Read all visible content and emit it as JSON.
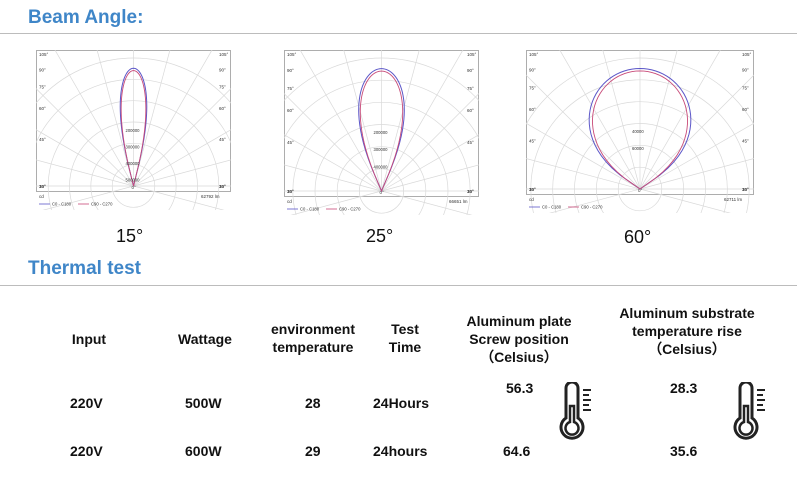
{
  "headings": {
    "beam_angle": "Beam Angle:",
    "thermal_test": "Thermal test"
  },
  "polar_charts": [
    {
      "angle_label": "15°",
      "lumens": "62792 lm",
      "legend": [
        "C0 - C180",
        "C90 - C270"
      ],
      "radial_labels": [
        "200000",
        "300000",
        "400000",
        "500000"
      ],
      "beam_half_angle_deg": 7.5,
      "series_colors": [
        "#5b56c8",
        "#c84a78"
      ]
    },
    {
      "angle_label": "25°",
      "lumens": "66651 lm",
      "legend": [
        "C0 - C180",
        "C90 - C270"
      ],
      "radial_labels": [
        "200000",
        "300000",
        "400000"
      ],
      "beam_half_angle_deg": 12.5,
      "series_colors": [
        "#5b56c8",
        "#c84a78"
      ]
    },
    {
      "angle_label": "60°",
      "lumens": "62711 lm",
      "legend": [
        "C0 - C180",
        "C90 - C270"
      ],
      "radial_labels": [
        "40000",
        "60000"
      ],
      "beam_half_angle_deg": 30,
      "series_colors": [
        "#5b56c8",
        "#c84a78"
      ]
    }
  ],
  "polar_axis": {
    "cd_label": "cd",
    "left_angles": [
      "105°",
      "90°",
      "75°",
      "60°",
      "45°",
      "30°",
      "15°"
    ],
    "right_angles": [
      "105°",
      "90°",
      "75°",
      "60°",
      "45°",
      "30°",
      "15°"
    ],
    "bottom_center": "0°"
  },
  "thermal_table": {
    "headers": {
      "input": "Input",
      "wattage": "Wattage",
      "environment": "environment\ntemperature",
      "test_time": "Test\nTime",
      "aluminum_plate": "Aluminum plate\nScrew position\n（Celsius）",
      "aluminum_substrate": "Aluminum substrate\ntemperature rise\n（Celsius）"
    },
    "rows": [
      {
        "input": "220V",
        "wattage": "500W",
        "env_temp": "28",
        "time": "24Hours",
        "plate": "56.3",
        "substrate": "28.3"
      },
      {
        "input": "220V",
        "wattage": "600W",
        "env_temp": "29",
        "time": "24hours",
        "plate": "64.6",
        "substrate": "35.6"
      }
    ],
    "icons": [
      "thermometer-icon",
      "thermometer-icon"
    ]
  }
}
